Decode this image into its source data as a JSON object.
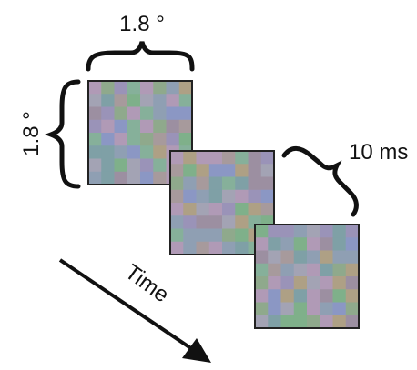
{
  "labels": {
    "width": "1.8 °",
    "height": "1.8 °",
    "duration": "10 ms",
    "time": "Time"
  },
  "frames": [
    {
      "name": "frame-1"
    },
    {
      "name": "frame-2"
    },
    {
      "name": "frame-3"
    }
  ],
  "grid": {
    "rows": 8,
    "cols": 8
  },
  "palette": [
    "#8f9fb3",
    "#9a93b8",
    "#86b09a",
    "#a79a9c",
    "#7fa0a6",
    "#b09ab6",
    "#8fa98c",
    "#a3a3b4",
    "#9c8fa1",
    "#7fb08a",
    "#aea085",
    "#8b97c4"
  ]
}
